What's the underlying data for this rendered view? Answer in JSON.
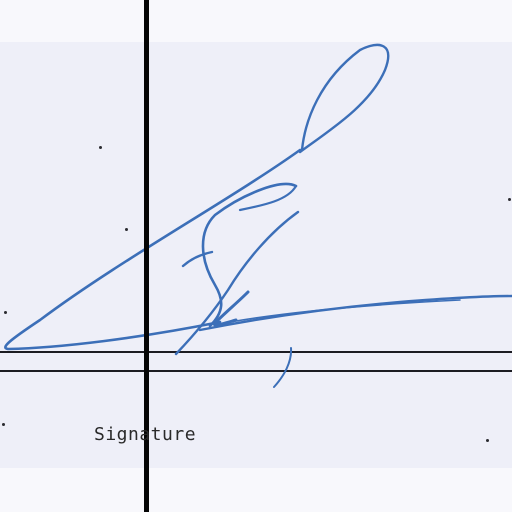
{
  "document": {
    "signature_label": "Signature",
    "ink_color": "#3c6fb8",
    "rule_color": "#1c1c22",
    "paper_color": "#eeeff8"
  }
}
